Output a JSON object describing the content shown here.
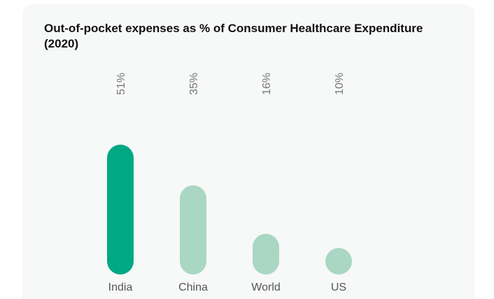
{
  "chart_data": {
    "type": "bar",
    "title": "Out-of-pocket expenses as % of Consumer Healthcare Expenditure (2020)",
    "categories": [
      "India",
      "China",
      "World",
      "US"
    ],
    "values": [
      51,
      35,
      16,
      10
    ],
    "value_labels": [
      "51%",
      "35%",
      "16%",
      "10%"
    ],
    "ylim": [
      0,
      51
    ],
    "grid": false,
    "legend": "none",
    "colors": [
      "#00a884",
      "#a9d7c4",
      "#a9d7c4",
      "#a9d7c4"
    ]
  }
}
